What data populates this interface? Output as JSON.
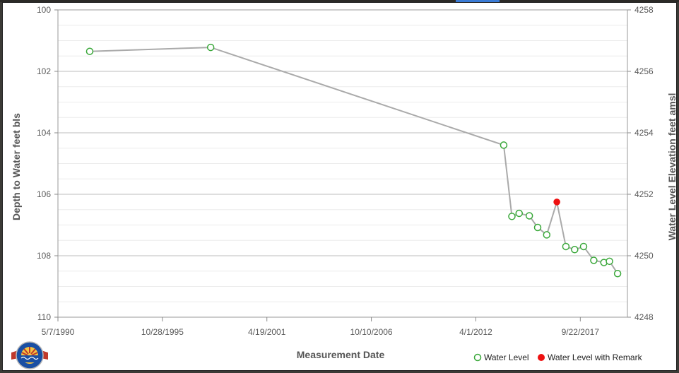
{
  "chart_data": {
    "type": "line",
    "xlabel": "Measurement Date",
    "ylabel": "Depth to Water feet bls",
    "y2label": "Water Level Elevation feet amsl",
    "x_ticks": [
      "5/7/1990",
      "10/28/1995",
      "4/19/2001",
      "10/10/2006",
      "4/1/2012",
      "9/22/2017"
    ],
    "y_ticks": [
      100,
      102,
      104,
      106,
      108,
      110
    ],
    "y2_ticks": [
      4258,
      4256,
      4254,
      4252,
      4250,
      4248
    ],
    "xlim": [
      "1990-05-07",
      "2020-03-12"
    ],
    "ylim": [
      110,
      100
    ],
    "y2lim": [
      4248,
      4258
    ],
    "grid": true,
    "legend_position": "bottom-right",
    "line_color": "#aaaaaa",
    "series": [
      {
        "name": "Water Level",
        "color": "#3aa83a",
        "marker": "hollow-circle",
        "points": [
          {
            "x": "1992-01-05",
            "y": 101.35
          },
          {
            "x": "1998-05-09",
            "y": 101.22
          },
          {
            "x": "2013-09-17",
            "y": 104.4
          },
          {
            "x": "2014-02-20",
            "y": 106.72
          },
          {
            "x": "2014-07-09",
            "y": 106.62
          },
          {
            "x": "2015-01-20",
            "y": 106.7
          },
          {
            "x": "2015-06-29",
            "y": 107.08
          },
          {
            "x": "2015-12-19",
            "y": 107.32
          },
          {
            "x": "2016-12-20",
            "y": 107.7
          },
          {
            "x": "2017-06-06",
            "y": 107.8
          },
          {
            "x": "2017-11-24",
            "y": 107.7
          },
          {
            "x": "2018-06-07",
            "y": 108.15
          },
          {
            "x": "2018-12-18",
            "y": 108.22
          },
          {
            "x": "2019-04-03",
            "y": 108.18
          },
          {
            "x": "2019-09-06",
            "y": 108.58
          }
        ]
      },
      {
        "name": "Water Level with Remark",
        "color": "#ee1111",
        "marker": "filled-circle",
        "points": [
          {
            "x": "2016-06-30",
            "y": 106.25
          }
        ]
      }
    ],
    "line_order": [
      "1992-01-05",
      "1998-05-09",
      "2013-09-17",
      "2014-02-20",
      "2014-07-09",
      "2015-01-20",
      "2015-06-29",
      "2015-12-19",
      "2016-06-30",
      "2016-12-20",
      "2017-06-06",
      "2017-11-24",
      "2018-06-07",
      "2018-12-18",
      "2019-04-03",
      "2019-09-06"
    ]
  },
  "legend": {
    "items": [
      {
        "label": "Water Level",
        "icon": "hollow-green-circle-icon"
      },
      {
        "label": "Water Level with Remark",
        "icon": "red-dot-icon"
      }
    ]
  },
  "logo": {
    "name": "arizona-department-of-water-resources-logo",
    "colors": [
      "#1a4fa3",
      "#c0392b",
      "#f4c542"
    ]
  }
}
